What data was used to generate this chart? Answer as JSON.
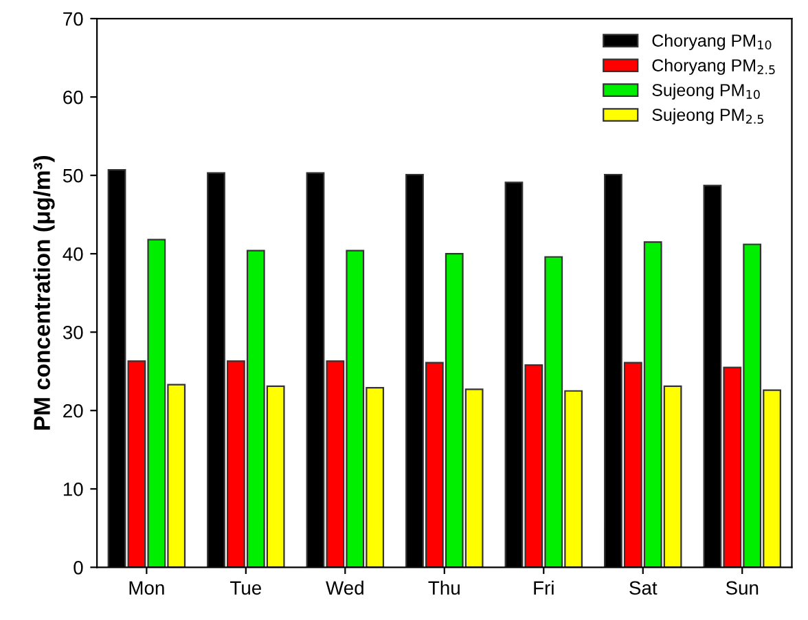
{
  "chart_data": {
    "type": "bar",
    "ylabel": "PM concentration (μg/m³)",
    "categories": [
      "Mon",
      "Tue",
      "Wed",
      "Thu",
      "Fri",
      "Sat",
      "Sun"
    ],
    "series": [
      {
        "name": "Choryang PM$_{10}$",
        "color": "#000000",
        "values": [
          50.7,
          50.3,
          50.3,
          50.1,
          49.1,
          50.1,
          48.7
        ]
      },
      {
        "name": "Choryang PM$_{2.5}$",
        "color": "#ff0000",
        "values": [
          26.3,
          26.3,
          26.3,
          26.1,
          25.8,
          26.1,
          25.5
        ]
      },
      {
        "name": "Sujeong PM$_{10}$",
        "color": "#00ee00",
        "values": [
          41.8,
          40.4,
          40.4,
          40.0,
          39.6,
          41.5,
          41.2
        ]
      },
      {
        "name": "Sujeong PM$_{2.5}$",
        "color": "#ffff00",
        "values": [
          23.3,
          23.1,
          22.9,
          22.7,
          22.5,
          23.1,
          22.6
        ]
      }
    ],
    "ylim": [
      0,
      70
    ],
    "yticks": [
      0,
      10,
      20,
      30,
      40,
      50,
      60,
      70
    ],
    "grid": false,
    "legend": "top right"
  }
}
